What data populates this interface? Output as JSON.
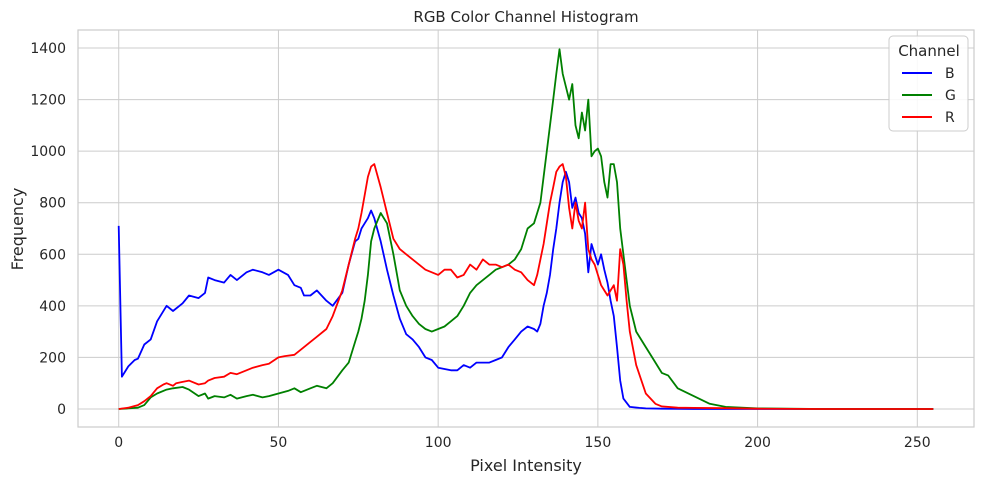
{
  "chart_data": {
    "type": "line",
    "title": "RGB Color Channel Histogram",
    "xlabel": "Pixel Intensity",
    "ylabel": "Frequency",
    "xlim": [
      -12.75,
      267.75
    ],
    "ylim": [
      -70,
      1470
    ],
    "xticks": [
      0,
      50,
      100,
      150,
      200,
      250
    ],
    "yticks": [
      0,
      200,
      400,
      600,
      800,
      1000,
      1200,
      1400
    ],
    "grid": true,
    "legend": {
      "title": "Channel",
      "placement": "top-right"
    },
    "series": [
      {
        "name": "B",
        "color": "#0000ff",
        "x": [
          0,
          1,
          3,
          5,
          6,
          8,
          10,
          12,
          15,
          17,
          20,
          22,
          25,
          27,
          28,
          30,
          33,
          35,
          37,
          40,
          42,
          45,
          47,
          50,
          53,
          55,
          57,
          58,
          60,
          62,
          65,
          67,
          70,
          72,
          74,
          75,
          76,
          77,
          78,
          79,
          80,
          82,
          84,
          86,
          88,
          90,
          92,
          94,
          96,
          98,
          100,
          102,
          104,
          106,
          108,
          110,
          112,
          114,
          116,
          118,
          120,
          122,
          124,
          126,
          128,
          130,
          131,
          132,
          133,
          134,
          135,
          136,
          137,
          138,
          139,
          140,
          141,
          142,
          143,
          144,
          145,
          146,
          147,
          148,
          149,
          150,
          151,
          152,
          153,
          154,
          155,
          156,
          157,
          158,
          160,
          163,
          165,
          170,
          180,
          200,
          220,
          255
        ],
        "y": [
          710,
          125,
          165,
          190,
          195,
          250,
          270,
          340,
          400,
          380,
          410,
          440,
          430,
          450,
          510,
          500,
          490,
          520,
          500,
          530,
          540,
          530,
          520,
          540,
          520,
          480,
          470,
          440,
          440,
          460,
          420,
          400,
          450,
          560,
          650,
          660,
          700,
          720,
          740,
          770,
          740,
          650,
          540,
          440,
          350,
          290,
          270,
          240,
          200,
          190,
          160,
          155,
          150,
          150,
          170,
          160,
          180,
          180,
          180,
          190,
          200,
          240,
          270,
          300,
          320,
          310,
          300,
          330,
          400,
          450,
          520,
          620,
          700,
          800,
          880,
          920,
          880,
          780,
          820,
          760,
          740,
          680,
          530,
          640,
          600,
          560,
          600,
          540,
          490,
          420,
          360,
          240,
          110,
          40,
          8,
          4,
          2,
          1,
          0,
          0,
          0,
          0
        ]
      },
      {
        "name": "G",
        "color": "#008000",
        "x": [
          0,
          3,
          6,
          8,
          10,
          12,
          15,
          17,
          20,
          22,
          25,
          27,
          28,
          30,
          33,
          35,
          37,
          40,
          42,
          45,
          47,
          50,
          53,
          55,
          57,
          60,
          62,
          65,
          67,
          70,
          72,
          74,
          75,
          76,
          77,
          78,
          79,
          80,
          82,
          84,
          86,
          88,
          90,
          92,
          94,
          96,
          98,
          100,
          102,
          104,
          106,
          108,
          110,
          112,
          114,
          116,
          118,
          120,
          122,
          124,
          126,
          128,
          130,
          131,
          132,
          133,
          134,
          135,
          136,
          137,
          138,
          139,
          140,
          141,
          142,
          143,
          144,
          145,
          146,
          147,
          148,
          149,
          150,
          151,
          152,
          153,
          154,
          155,
          156,
          157,
          158,
          160,
          162,
          165,
          167,
          170,
          172,
          175,
          180,
          185,
          190,
          200,
          220,
          255
        ],
        "y": [
          0,
          2,
          5,
          15,
          45,
          60,
          75,
          80,
          85,
          75,
          50,
          60,
          40,
          50,
          45,
          55,
          40,
          50,
          55,
          45,
          50,
          60,
          70,
          80,
          65,
          80,
          90,
          80,
          100,
          150,
          180,
          260,
          300,
          350,
          420,
          520,
          650,
          700,
          760,
          720,
          600,
          460,
          400,
          360,
          330,
          310,
          300,
          310,
          320,
          340,
          360,
          400,
          450,
          480,
          500,
          520,
          540,
          550,
          560,
          580,
          620,
          700,
          720,
          760,
          800,
          900,
          1000,
          1100,
          1200,
          1300,
          1395,
          1300,
          1250,
          1200,
          1260,
          1100,
          1050,
          1150,
          1080,
          1200,
          980,
          1000,
          1010,
          980,
          880,
          820,
          950,
          950,
          880,
          700,
          600,
          400,
          300,
          240,
          200,
          140,
          130,
          80,
          50,
          20,
          8,
          2,
          0,
          0
        ]
      },
      {
        "name": "R",
        "color": "#ff0000",
        "x": [
          0,
          3,
          6,
          8,
          10,
          12,
          14,
          15,
          17,
          18,
          20,
          22,
          25,
          27,
          28,
          30,
          33,
          35,
          37,
          40,
          42,
          45,
          47,
          50,
          52,
          55,
          57,
          60,
          62,
          65,
          67,
          70,
          72,
          74,
          75,
          76,
          77,
          78,
          79,
          80,
          82,
          84,
          86,
          88,
          90,
          92,
          94,
          96,
          98,
          100,
          102,
          104,
          106,
          108,
          110,
          112,
          114,
          116,
          118,
          120,
          122,
          124,
          126,
          128,
          130,
          131,
          132,
          133,
          134,
          135,
          136,
          137,
          138,
          139,
          140,
          141,
          142,
          143,
          144,
          145,
          146,
          147,
          148,
          149,
          150,
          151,
          152,
          153,
          154,
          155,
          156,
          157,
          158,
          159,
          160,
          162,
          165,
          168,
          170,
          175,
          180,
          190,
          200,
          220,
          255
        ],
        "y": [
          0,
          5,
          15,
          30,
          50,
          80,
          95,
          100,
          90,
          100,
          105,
          110,
          95,
          100,
          110,
          120,
          125,
          140,
          135,
          150,
          160,
          170,
          175,
          200,
          205,
          210,
          230,
          260,
          280,
          310,
          360,
          460,
          560,
          660,
          700,
          760,
          830,
          900,
          940,
          950,
          860,
          760,
          660,
          620,
          600,
          580,
          560,
          540,
          530,
          520,
          540,
          540,
          510,
          520,
          560,
          540,
          580,
          560,
          560,
          550,
          560,
          540,
          530,
          500,
          480,
          520,
          580,
          640,
          720,
          800,
          860,
          920,
          940,
          950,
          900,
          780,
          700,
          800,
          730,
          700,
          800,
          620,
          580,
          560,
          520,
          480,
          460,
          440,
          460,
          480,
          420,
          620,
          560,
          420,
          300,
          170,
          60,
          20,
          10,
          5,
          4,
          3,
          1,
          0,
          0
        ]
      }
    ]
  }
}
